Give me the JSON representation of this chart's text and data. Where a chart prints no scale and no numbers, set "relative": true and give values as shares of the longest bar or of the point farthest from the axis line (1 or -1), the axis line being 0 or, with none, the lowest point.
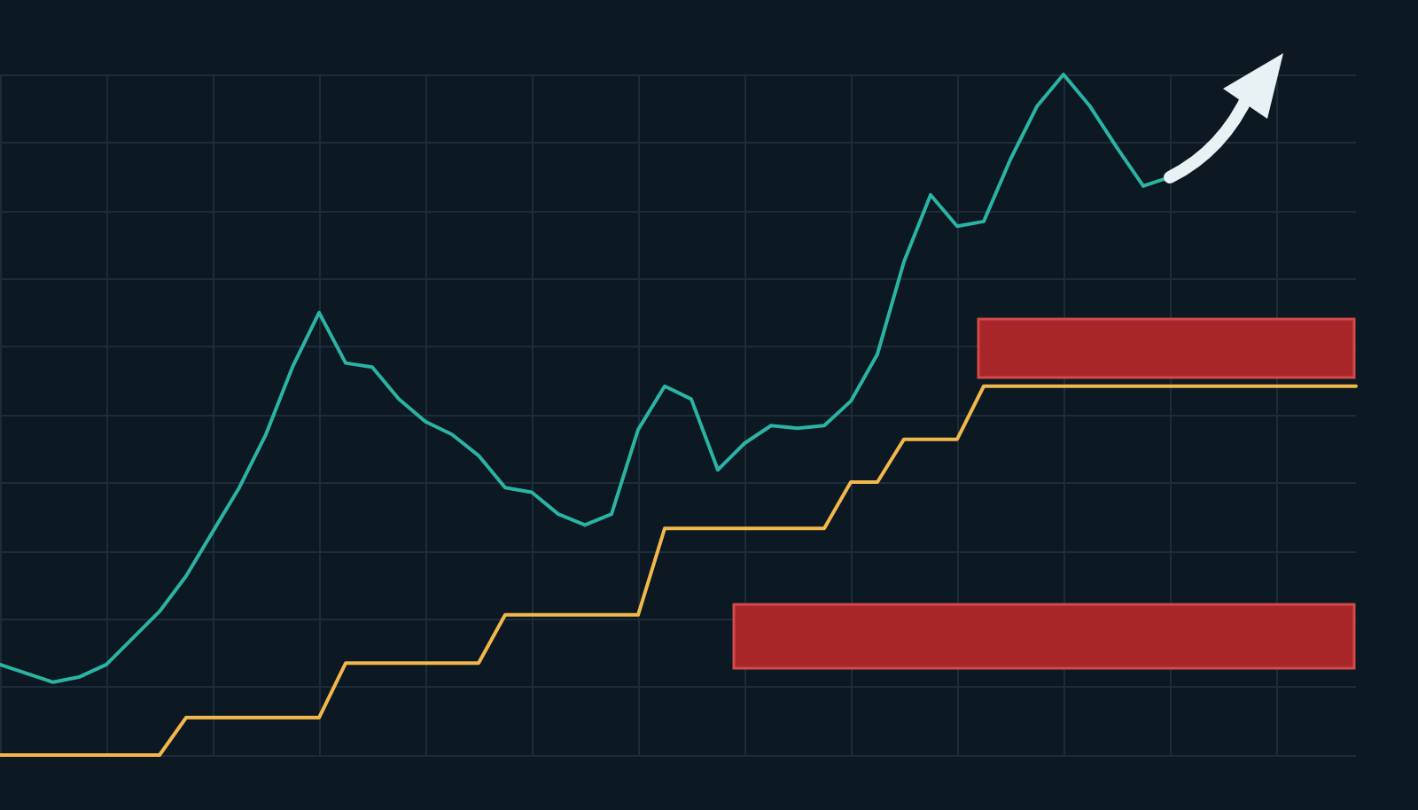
{
  "chart_data": {
    "type": "line",
    "relative": true,
    "grid": true,
    "marker": "none",
    "categories": [
      null,
      null,
      null,
      null,
      null,
      null,
      null,
      null,
      null,
      null,
      null,
      null,
      null,
      null,
      null,
      null,
      null,
      null,
      null,
      null,
      null,
      null,
      null,
      null,
      null,
      null,
      null,
      null,
      null,
      null,
      null,
      null,
      null,
      null,
      null,
      null,
      null,
      null,
      null,
      null,
      null,
      null,
      null,
      null,
      null,
      null,
      null,
      null,
      null,
      null,
      null,
      null
    ],
    "series": [
      {
        "color": "#2bb3a3",
        "values": [
          0.133,
          0.12,
          0.107,
          0.115,
          0.133,
          0.172,
          0.211,
          0.263,
          0.328,
          0.393,
          0.471,
          0.57,
          0.65,
          0.576,
          0.57,
          0.523,
          0.49,
          0.471,
          0.44,
          0.393,
          0.386,
          0.354,
          0.338,
          0.354,
          0.478,
          0.542,
          0.523,
          0.419,
          0.458,
          0.484,
          0.48,
          0.484,
          0.52,
          0.589,
          0.725,
          0.823,
          0.777,
          0.784,
          0.875,
          0.953,
          1.0,
          0.953,
          0.893,
          0.836,
          0.849,
          null,
          null,
          null,
          null,
          null,
          null,
          null
        ]
      },
      {
        "color": "#f2b84b",
        "values": [
          0,
          0,
          0,
          0,
          0,
          0,
          0,
          0.055,
          0.055,
          0.055,
          0.055,
          0.055,
          0.055,
          0.135,
          0.135,
          0.135,
          0.135,
          0.135,
          0.135,
          0.206,
          0.206,
          0.206,
          0.206,
          0.206,
          0.206,
          0.333,
          0.333,
          0.333,
          0.333,
          0.333,
          0.333,
          0.333,
          0.401,
          0.401,
          0.464,
          0.464,
          0.464,
          0.542,
          0.542,
          0.542,
          0.542,
          0.542,
          0.542,
          0.542,
          0.542,
          0.542,
          0.542,
          0.542,
          0.542,
          0.542,
          0.542,
          0.542
        ]
      }
    ]
  }
}
